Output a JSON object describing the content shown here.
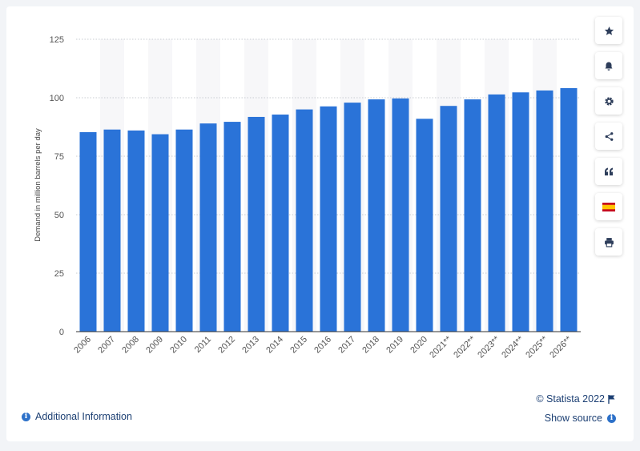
{
  "chart_data": {
    "type": "bar",
    "categories": [
      "2006",
      "2007",
      "2008",
      "2009",
      "2010",
      "2011",
      "2012",
      "2013",
      "2014",
      "2015",
      "2016",
      "2017",
      "2018",
      "2019",
      "2020",
      "2021**",
      "2022**",
      "2023**",
      "2024**",
      "2025**",
      "2026**"
    ],
    "values": [
      85.3,
      86.4,
      86.0,
      84.4,
      86.4,
      89.0,
      89.7,
      91.8,
      92.8,
      95.0,
      96.3,
      97.9,
      99.3,
      99.7,
      91.0,
      96.5,
      99.3,
      101.4,
      102.3,
      103.1,
      104.1
    ],
    "ylabel": "Demand in million barrels per day",
    "xlabel": "",
    "ylim": [
      0,
      125
    ],
    "yticks": [
      0,
      25,
      50,
      75,
      100,
      125
    ],
    "grid": true,
    "bar_color": "#2a73d8"
  },
  "footer": {
    "credit": "© Statista 2022",
    "additional_info": "Additional Information",
    "show_source": "Show source"
  },
  "toolbar": {
    "icons": [
      "star-icon",
      "bell-icon",
      "gear-icon",
      "share-icon",
      "quote-icon",
      "spain-flag-icon",
      "print-icon"
    ]
  }
}
